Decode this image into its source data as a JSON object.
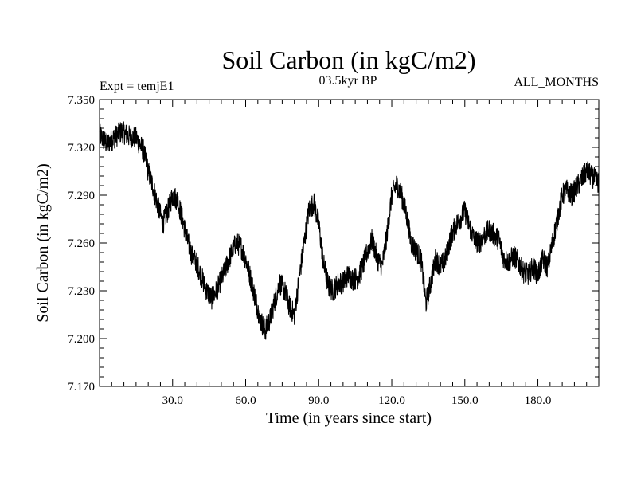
{
  "chart_data": {
    "type": "line",
    "title": "Soil Carbon (in kgC/m2)",
    "subtitle_left": "Expt = temjE1",
    "subtitle_center": "03.5kyr BP",
    "subtitle_right": "ALL_MONTHS",
    "xlabel": "Time (in years since start)",
    "ylabel": "Soil Carbon (in kgC/m2)",
    "xlim": [
      0,
      205
    ],
    "ylim": [
      7.17,
      7.35
    ],
    "x_ticks": [
      30,
      60,
      90,
      120,
      150,
      180
    ],
    "x_tick_labels": [
      "30.0",
      "60.0",
      "90.0",
      "120.0",
      "150.0",
      "180.0"
    ],
    "y_ticks": [
      7.17,
      7.2,
      7.23,
      7.26,
      7.29,
      7.32,
      7.35
    ],
    "y_tick_labels": [
      "7.170",
      "7.200",
      "7.230",
      "7.260",
      "7.290",
      "7.320",
      "7.350"
    ],
    "series": [
      {
        "name": "Soil Carbon",
        "color": "#000000",
        "trend_x": [
          0,
          3,
          6,
          9,
          12,
          15,
          18,
          20,
          22,
          24,
          26,
          28,
          30,
          32,
          34,
          36,
          38,
          40,
          42,
          44,
          46,
          48,
          50,
          52,
          54,
          56,
          58,
          60,
          62,
          64,
          66,
          68,
          70,
          72,
          74,
          76,
          78,
          80,
          82,
          84,
          86,
          88,
          90,
          92,
          94,
          96,
          98,
          100,
          102,
          104,
          106,
          108,
          110,
          112,
          114,
          116,
          118,
          120,
          122,
          124,
          126,
          128,
          130,
          132,
          134,
          136,
          138,
          140,
          142,
          144,
          146,
          148,
          150,
          152,
          154,
          156,
          158,
          160,
          162,
          164,
          166,
          168,
          170,
          172,
          174,
          176,
          178,
          180,
          182,
          184,
          186,
          188,
          190,
          192,
          194,
          196,
          198,
          200,
          202,
          205
        ],
        "trend_y": [
          7.328,
          7.322,
          7.326,
          7.33,
          7.327,
          7.326,
          7.318,
          7.305,
          7.295,
          7.283,
          7.272,
          7.28,
          7.29,
          7.287,
          7.275,
          7.262,
          7.252,
          7.247,
          7.238,
          7.23,
          7.225,
          7.23,
          7.237,
          7.245,
          7.253,
          7.26,
          7.258,
          7.25,
          7.238,
          7.225,
          7.212,
          7.205,
          7.212,
          7.224,
          7.235,
          7.23,
          7.22,
          7.215,
          7.238,
          7.26,
          7.281,
          7.285,
          7.272,
          7.247,
          7.233,
          7.23,
          7.235,
          7.235,
          7.24,
          7.237,
          7.238,
          7.245,
          7.255,
          7.262,
          7.25,
          7.245,
          7.265,
          7.29,
          7.297,
          7.29,
          7.278,
          7.26,
          7.255,
          7.25,
          7.222,
          7.235,
          7.25,
          7.245,
          7.25,
          7.262,
          7.27,
          7.275,
          7.28,
          7.27,
          7.262,
          7.26,
          7.265,
          7.268,
          7.265,
          7.262,
          7.25,
          7.248,
          7.252,
          7.248,
          7.242,
          7.24,
          7.245,
          7.24,
          7.25,
          7.245,
          7.26,
          7.275,
          7.29,
          7.293,
          7.29,
          7.295,
          7.3,
          7.305,
          7.302,
          7.298
        ],
        "noise_amplitude": 0.007,
        "points_per_year": 12
      }
    ]
  }
}
